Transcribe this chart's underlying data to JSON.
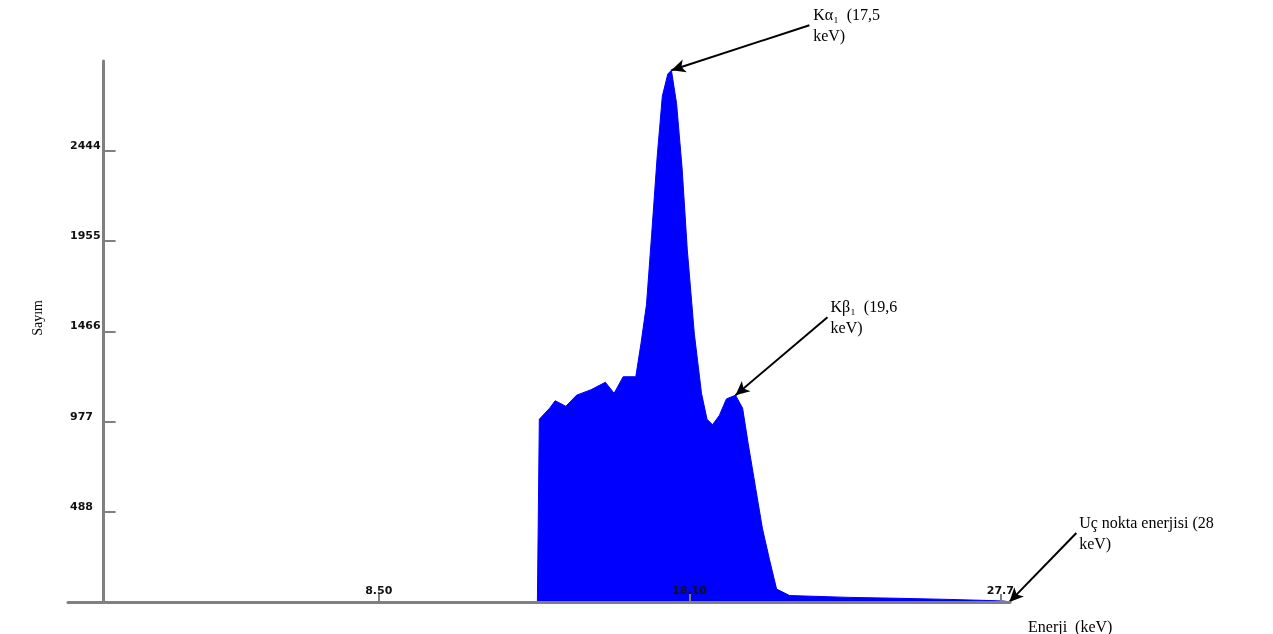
{
  "chart_data": {
    "type": "area",
    "xlabel": "Enerji  (keV)",
    "ylabel": "Sayım",
    "color": "#0000ff",
    "x": [
      13.4,
      13.46,
      13.78,
      13.95,
      14.28,
      14.61,
      15.06,
      15.5,
      15.77,
      16.05,
      16.44,
      16.6,
      16.77,
      16.93,
      17.1,
      17.26,
      17.43,
      17.54,
      17.7,
      17.87,
      18.03,
      18.25,
      18.47,
      18.64,
      18.81,
      19.02,
      19.24,
      19.52,
      19.74,
      19.91,
      20.13,
      20.35,
      20.57,
      20.79,
      21.19,
      23.04,
      24.58,
      26.12,
      27.36,
      27.82,
      27.98
    ],
    "values": [
      0,
      990,
      1050,
      1090,
      1060,
      1120,
      1150,
      1190,
      1130,
      1220,
      1220,
      1400,
      1610,
      1990,
      2410,
      2740,
      2860,
      2880,
      2700,
      2350,
      1910,
      1450,
      1130,
      990,
      960,
      1010,
      1100,
      1120,
      1050,
      860,
      630,
      400,
      230,
      70,
      35,
      25,
      20,
      14,
      8,
      5,
      0
    ],
    "xlim": [
      -1.1,
      28
    ],
    "xticks": [
      {
        "value": 8.5,
        "label": "8.50"
      },
      {
        "value": 18.1,
        "label": "18.10"
      },
      27.7
    ],
    "ylim": [
      0,
      2930
    ],
    "yticks": [
      488,
      977,
      1466,
      1955,
      2444
    ],
    "grid": false,
    "annotations": [
      {
        "text": "Kα₁  (17,5 keV)",
        "x": 17.54,
        "y": 2880
      },
      {
        "text": "Kβ₁  (19,6 keV)",
        "x": 19.52,
        "y": 1120
      },
      {
        "text": "Uç nokta enerjisi (28 keV)",
        "x": 27.98,
        "y": 0
      }
    ]
  }
}
